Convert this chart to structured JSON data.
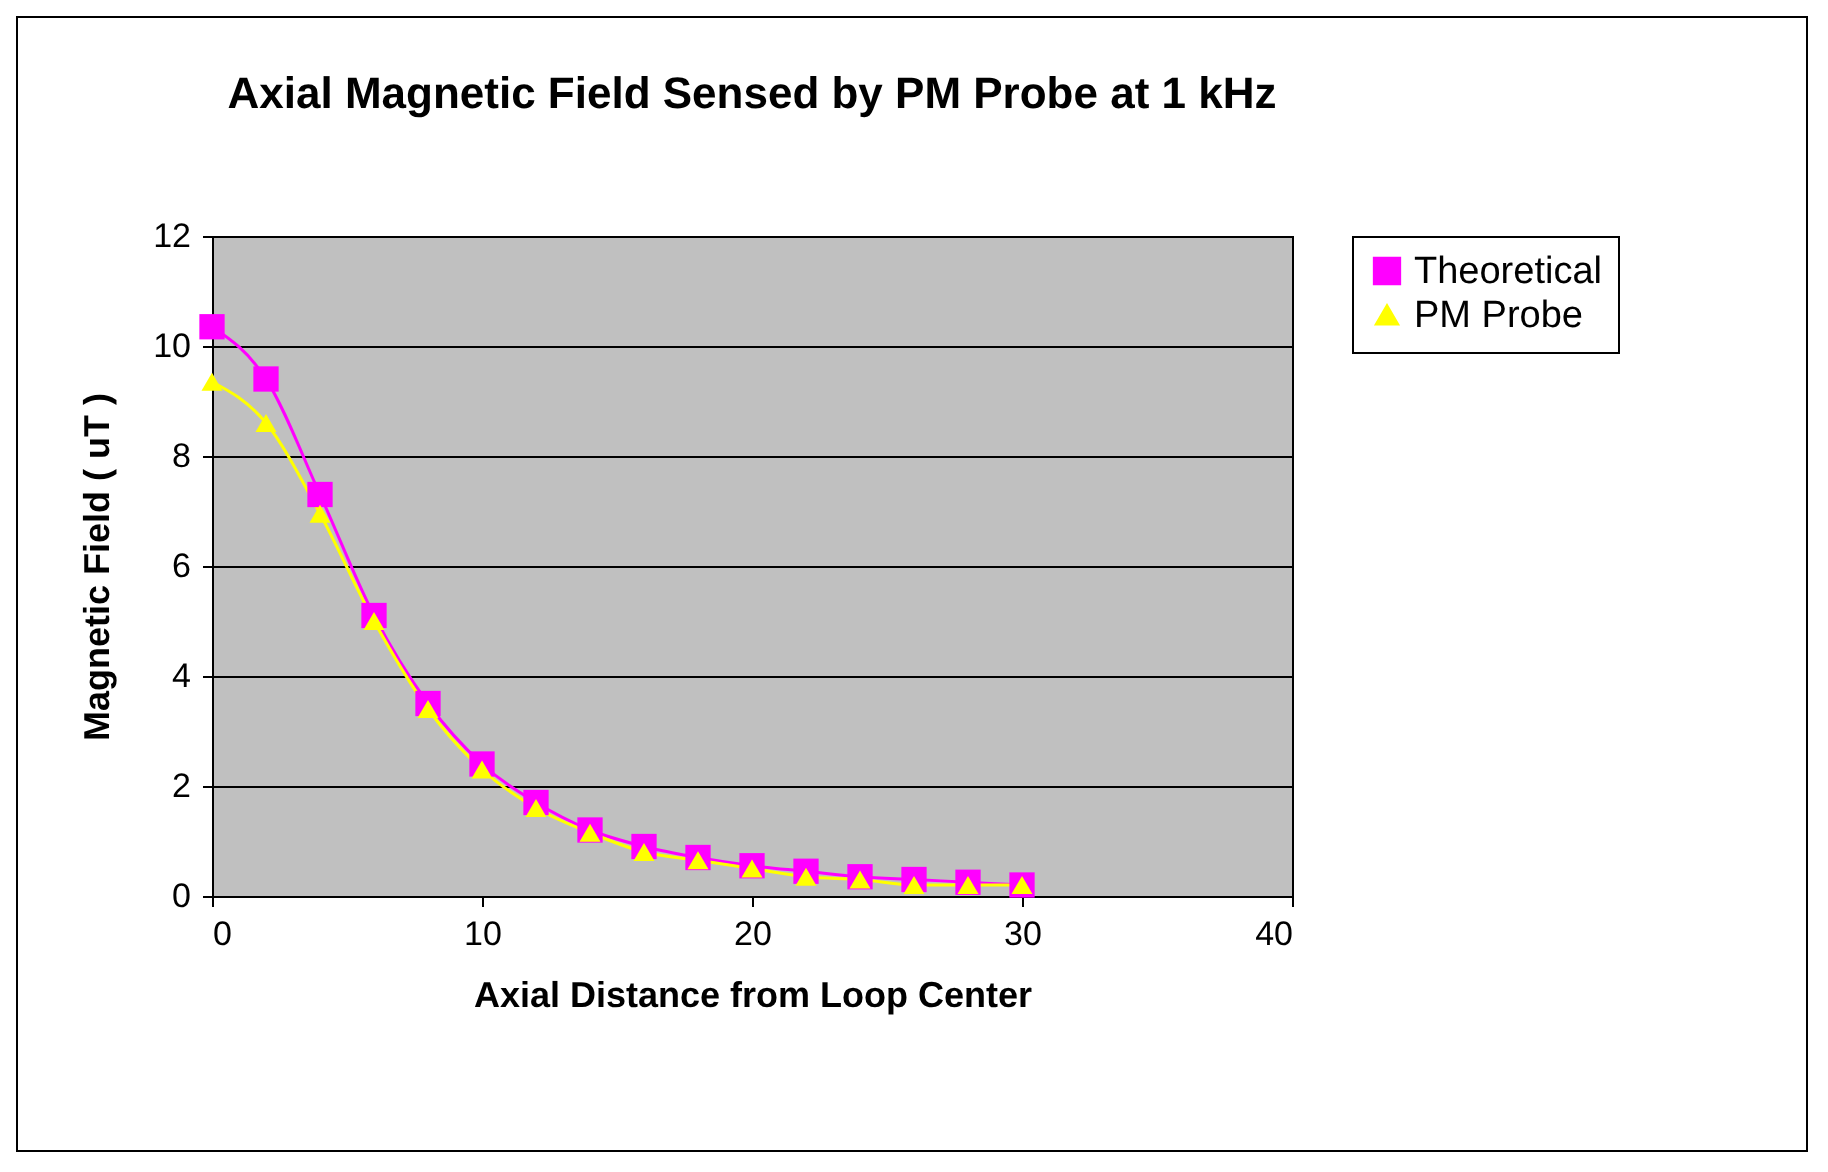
{
  "chart_data": {
    "type": "line",
    "title": "Axial Magnetic Field Sensed by PM Probe at 1 kHz",
    "xlabel": "Axial Distance from Loop Center",
    "ylabel": "Magnetic Field ( uT )",
    "x": [
      0,
      2,
      4,
      6,
      8,
      10,
      12,
      14,
      16,
      18,
      20,
      22,
      24,
      26,
      28,
      30
    ],
    "series": [
      {
        "name": "Theoretical",
        "color": "#ff00ff",
        "marker": "square",
        "values": [
          10.35,
          9.4,
          7.3,
          5.1,
          3.5,
          2.4,
          1.7,
          1.2,
          0.9,
          0.7,
          0.55,
          0.45,
          0.35,
          0.3,
          0.25,
          0.2
        ]
      },
      {
        "name": "PM  Probe",
        "color": "#ffff00",
        "marker": "triangle",
        "values": [
          9.35,
          8.6,
          6.95,
          5.0,
          3.4,
          2.3,
          1.6,
          1.15,
          0.8,
          0.65,
          0.5,
          0.35,
          0.3,
          0.2,
          0.2,
          0.2
        ]
      }
    ],
    "xlim": [
      0,
      40
    ],
    "xticks": [
      0,
      10,
      20,
      30,
      40
    ],
    "ylim": [
      0,
      12
    ],
    "yticks": [
      0,
      2,
      4,
      6,
      8,
      10,
      12
    ],
    "grid": "y",
    "legend": "right"
  }
}
